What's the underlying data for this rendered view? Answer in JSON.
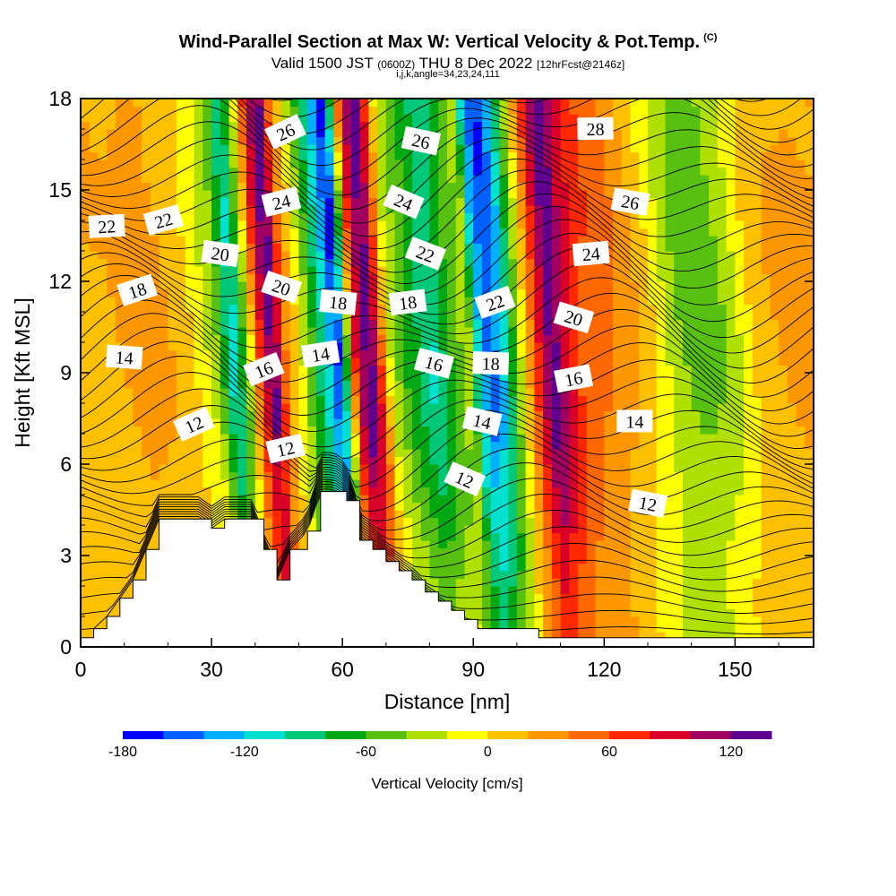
{
  "header": {
    "title": "Wind-Parallel Section at Max W: Vertical Velocity & Pot.Temp.",
    "copyright": "(C)",
    "valid_main": "Valid 1500 JST",
    "valid_utc": "(0600Z)",
    "valid_date": "THU 8 Dec 2022",
    "forecast": "[12hrFcst@2146z]",
    "indices": "i,j,k,angle=34,23,24,111"
  },
  "chart_data": {
    "type": "heatmap",
    "xlabel": "Distance [nm]",
    "ylabel": "Height [Kft MSL]",
    "xlim": [
      0,
      168
    ],
    "ylim": [
      0,
      18
    ],
    "x_ticks": [
      0,
      30,
      60,
      90,
      120,
      150
    ],
    "y_ticks": [
      0,
      3,
      6,
      9,
      12,
      15,
      18
    ],
    "colorbar": {
      "title": "Vertical Velocity [cm/s]",
      "min": -180,
      "max": 140,
      "step": 20,
      "tick_labels": [
        -180,
        -120,
        -60,
        0,
        60,
        120
      ],
      "colors": [
        "#0000ff",
        "#0060ff",
        "#00b0ff",
        "#00e0d0",
        "#00c878",
        "#00a814",
        "#58c010",
        "#b0e000",
        "#ffff00",
        "#ffc000",
        "#ff9800",
        "#ff6800",
        "#ff2800",
        "#d80028",
        "#a00060",
        "#600090"
      ]
    },
    "velocity_profile": {
      "x": [
        0,
        10,
        18,
        28,
        34,
        38,
        41,
        44,
        47,
        50,
        53,
        56,
        60,
        62,
        64,
        66,
        69,
        71,
        74,
        78,
        84,
        88,
        92,
        94,
        97,
        100,
        104,
        108,
        111,
        114,
        118,
        122,
        128,
        134,
        140,
        146,
        152,
        158,
        164,
        168
      ],
      "w": [
        20,
        15,
        30,
        5,
        -30,
        -110,
        -40,
        70,
        140,
        40,
        -10,
        -60,
        -130,
        -170,
        -60,
        80,
        140,
        90,
        -20,
        -60,
        -100,
        -60,
        -30,
        -120,
        -160,
        -120,
        -20,
        80,
        140,
        100,
        60,
        50,
        30,
        0,
        -40,
        -50,
        -30,
        10,
        20,
        25
      ]
    },
    "terrain": {
      "x": [
        0,
        3,
        6,
        9,
        12,
        15,
        18,
        21,
        27,
        30,
        33,
        39,
        42,
        45,
        48,
        52,
        55,
        58,
        61,
        64,
        67,
        70,
        73,
        76,
        79,
        82,
        85,
        88,
        91,
        100,
        105,
        168
      ],
      "height": [
        0.3,
        0.6,
        1.0,
        1.6,
        2.2,
        3.2,
        4.2,
        4.2,
        4.2,
        3.9,
        4.2,
        4.2,
        3.2,
        2.2,
        3.2,
        3.8,
        5.1,
        5.1,
        4.8,
        3.5,
        3.2,
        2.8,
        2.5,
        2.2,
        1.8,
        1.5,
        1.2,
        0.9,
        0.6,
        0.6,
        0.3,
        0.3
      ]
    },
    "contour_labels": [
      {
        "text": "26",
        "x": 47,
        "y": 16.9
      },
      {
        "text": "26",
        "x": 78,
        "y": 16.6
      },
      {
        "text": "28",
        "x": 118,
        "y": 17.0
      },
      {
        "text": "24",
        "x": 46,
        "y": 14.6
      },
      {
        "text": "24",
        "x": 74,
        "y": 14.6
      },
      {
        "text": "26",
        "x": 126,
        "y": 14.6
      },
      {
        "text": "22",
        "x": 6,
        "y": 13.8
      },
      {
        "text": "22",
        "x": 19,
        "y": 14.0
      },
      {
        "text": "22",
        "x": 79,
        "y": 12.9
      },
      {
        "text": "20",
        "x": 32,
        "y": 12.9
      },
      {
        "text": "24",
        "x": 117,
        "y": 12.9
      },
      {
        "text": "18",
        "x": 13,
        "y": 11.7
      },
      {
        "text": "20",
        "x": 46,
        "y": 11.8
      },
      {
        "text": "18",
        "x": 59,
        "y": 11.3
      },
      {
        "text": "18",
        "x": 75,
        "y": 11.3
      },
      {
        "text": "22",
        "x": 95,
        "y": 11.3
      },
      {
        "text": "20",
        "x": 113,
        "y": 10.8
      },
      {
        "text": "14",
        "x": 10,
        "y": 9.5
      },
      {
        "text": "14",
        "x": 55,
        "y": 9.6
      },
      {
        "text": "16",
        "x": 42,
        "y": 9.1
      },
      {
        "text": "16",
        "x": 81,
        "y": 9.3
      },
      {
        "text": "18",
        "x": 94,
        "y": 9.3
      },
      {
        "text": "16",
        "x": 113,
        "y": 8.8
      },
      {
        "text": "12",
        "x": 26,
        "y": 7.3
      },
      {
        "text": "14",
        "x": 92,
        "y": 7.4
      },
      {
        "text": "14",
        "x": 127,
        "y": 7.4
      },
      {
        "text": "12",
        "x": 47,
        "y": 6.5
      },
      {
        "text": "12",
        "x": 88,
        "y": 5.5
      },
      {
        "text": "12",
        "x": 130,
        "y": 4.7
      }
    ]
  }
}
